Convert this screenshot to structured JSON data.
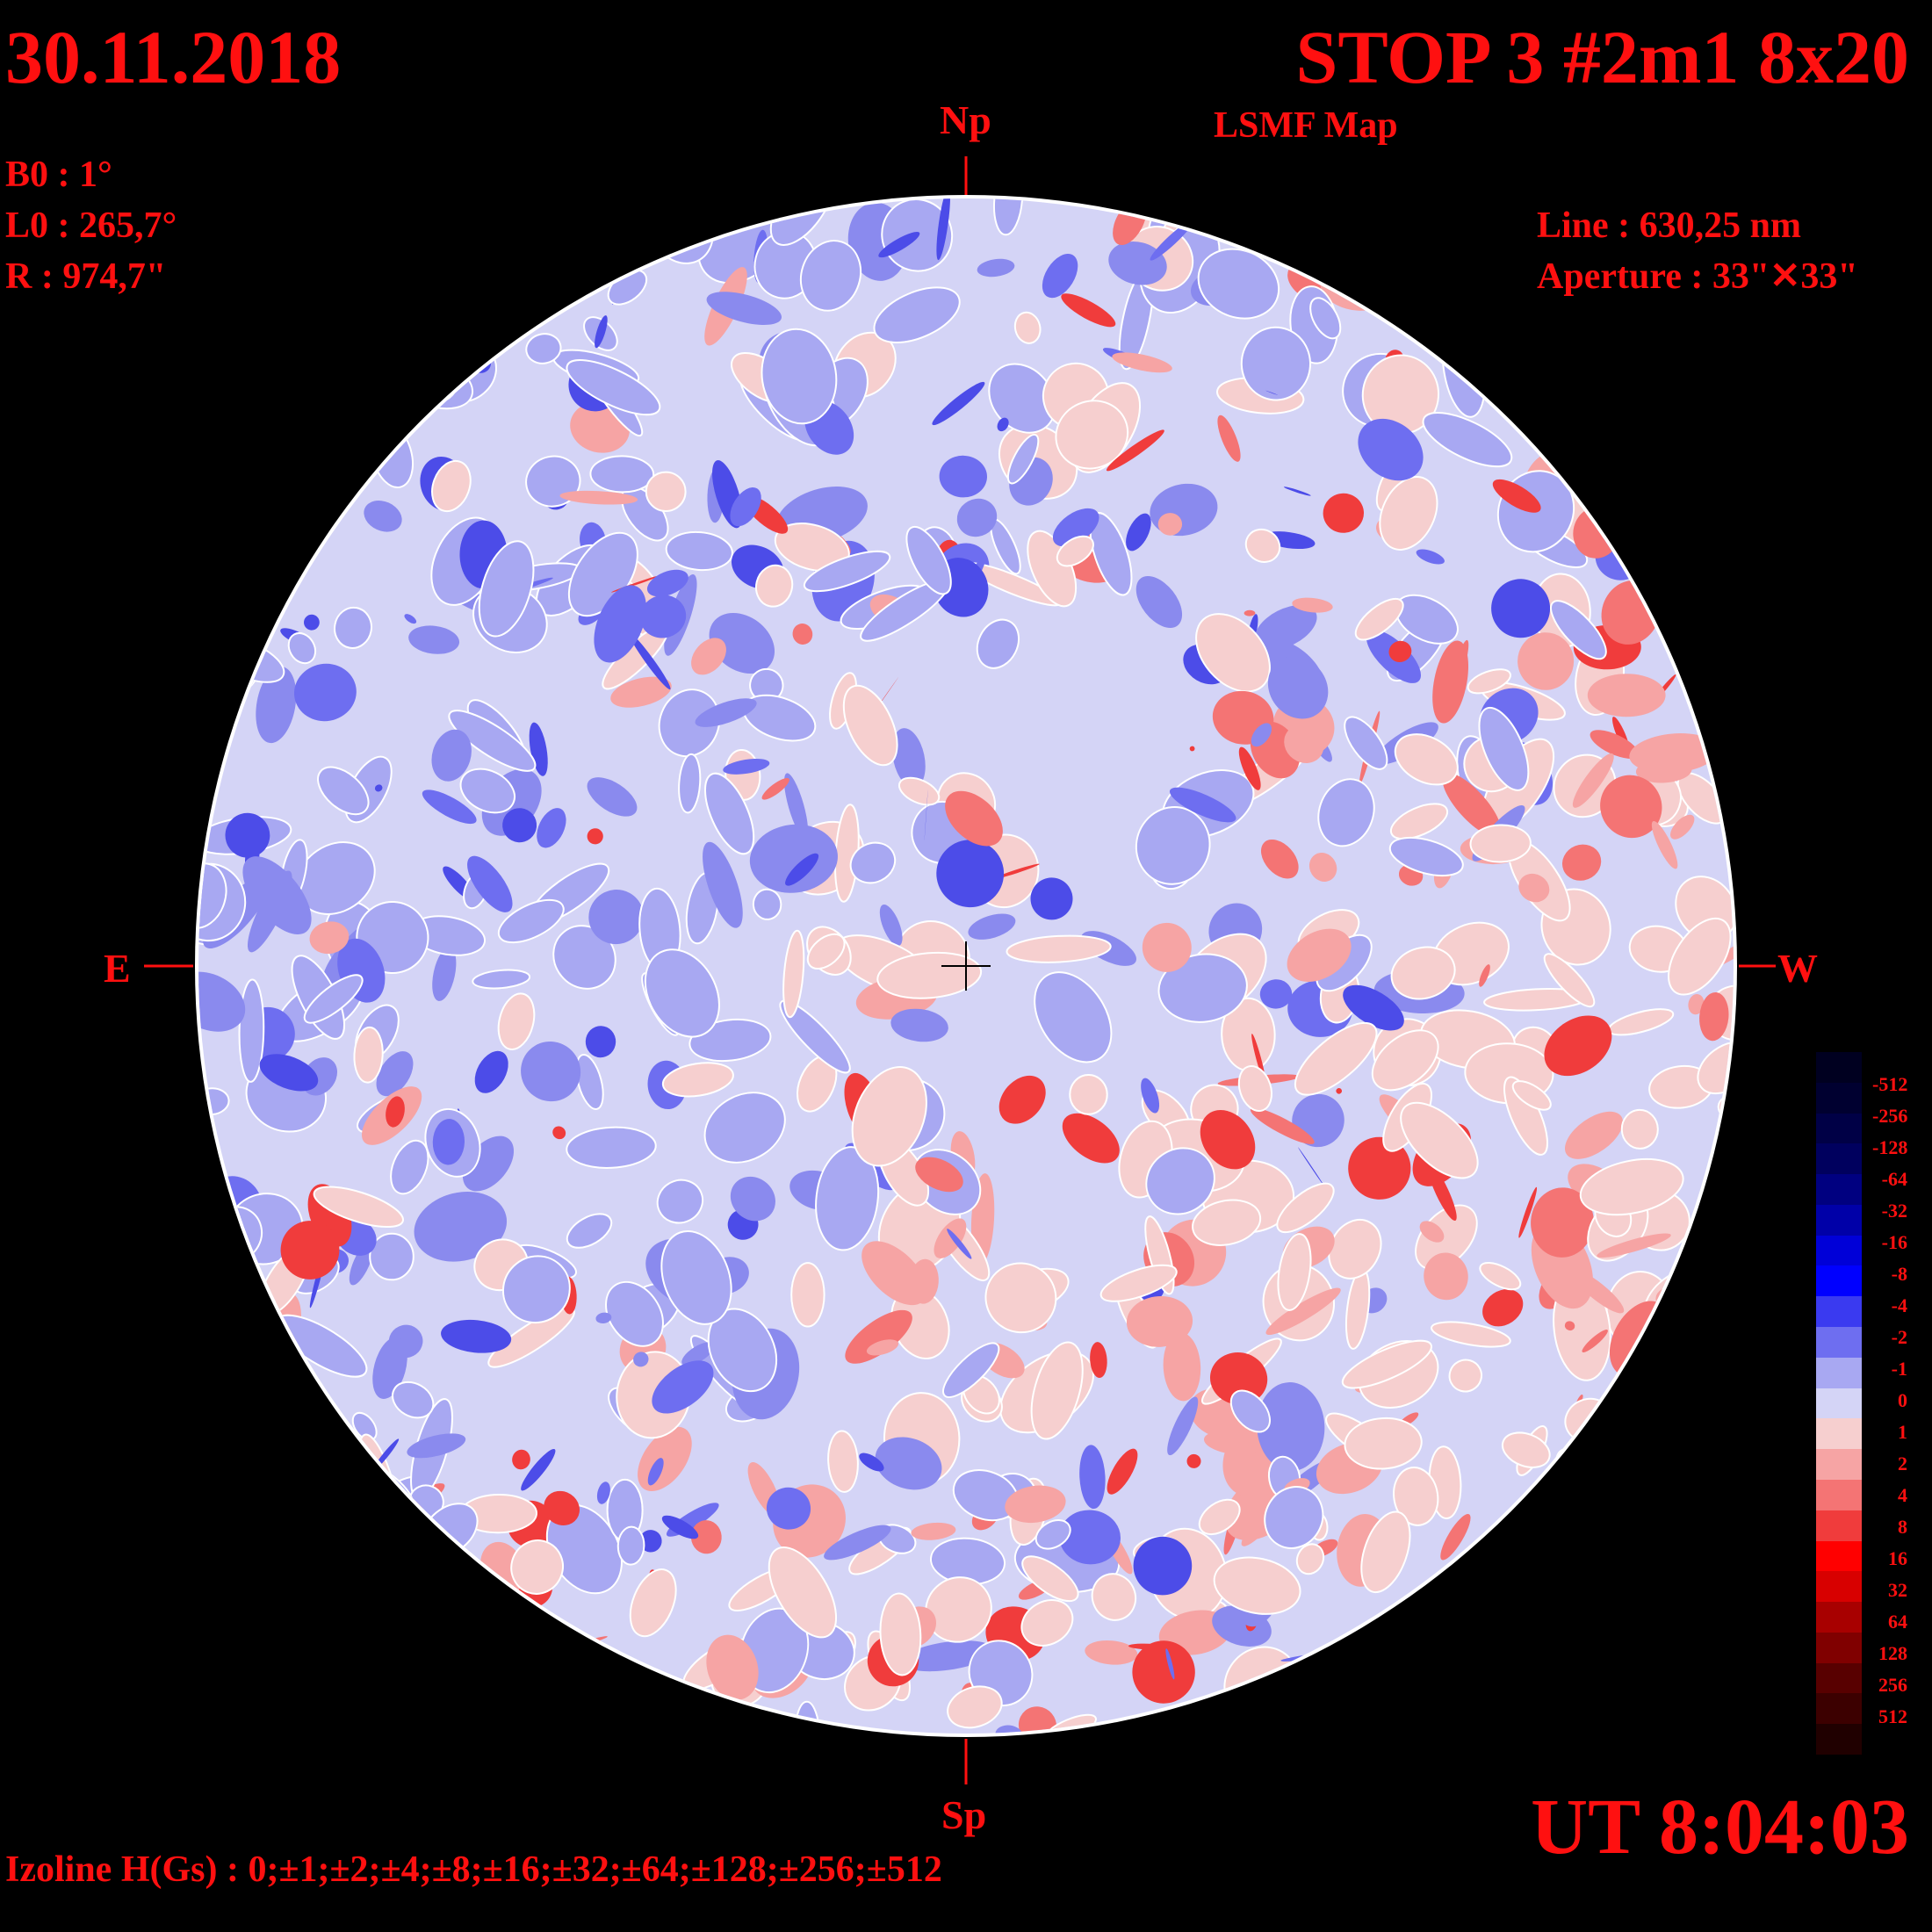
{
  "header": {
    "date": "30.11.2018",
    "title": "STOP 3 #2m1 8x20",
    "subtitle": "LSMF  Map"
  },
  "params": {
    "b0": "B0 : 1°",
    "l0": "L0 : 265,7°",
    "radius": "R  : 974,7\"",
    "line": "Line :  630,25 nm",
    "aperture": "Aperture : 33\"✕33\""
  },
  "directions": {
    "north": "Np",
    "south": "Sp",
    "east": "E",
    "west": "W"
  },
  "time": "UT 8:04:03",
  "isolines": "Izoline H(Gs) : 0;±1;±2;±4;±8;±16;±32;±64;±128;±256;±512",
  "colorbar": {
    "labels": [
      "-512",
      "-256",
      "-128",
      "-64",
      "-32",
      "-16",
      "-8",
      "-4",
      "-2",
      "-1",
      "0",
      "1",
      "2",
      "4",
      "8",
      "16",
      "32",
      "64",
      "128",
      "256",
      "512"
    ],
    "colors": [
      "#000020",
      "#000030",
      "#000046",
      "#00005e",
      "#000080",
      "#0000a8",
      "#0000d8",
      "#0000ff",
      "#3a3af0",
      "#6e6ef0",
      "#a8a8f2",
      "#d4d4f6",
      "#f6cfcf",
      "#f6a4a4",
      "#f47474",
      "#f03c3c",
      "#ff0000",
      "#d80000",
      "#a80000",
      "#800000",
      "#580000",
      "#3c0000",
      "#200000"
    ]
  },
  "colors": {
    "text": "#ff1010",
    "negative": "#6e6ef0",
    "positive": "#f47474",
    "disk_edge": "#ffffff"
  }
}
